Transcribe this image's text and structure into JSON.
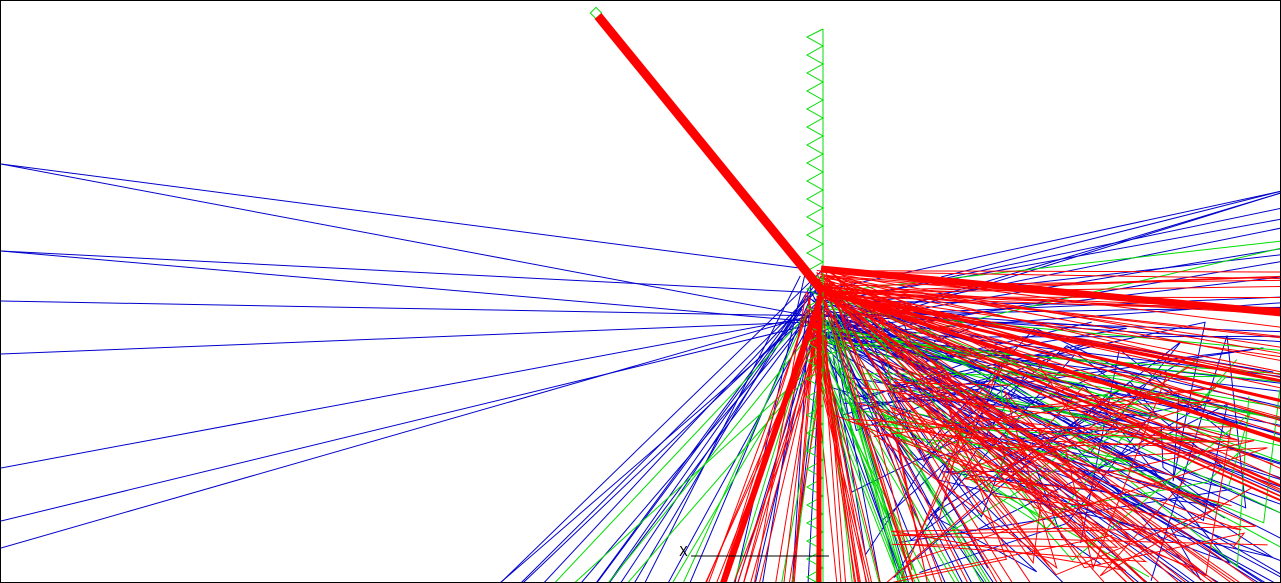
{
  "viewport": {
    "background": "#ffffff",
    "frame_color": "#000000"
  },
  "colors": {
    "blue": "#0000cc",
    "red": "#ff0000",
    "green": "#00dd00",
    "black": "#000000"
  },
  "axis": {
    "label": "X"
  }
}
